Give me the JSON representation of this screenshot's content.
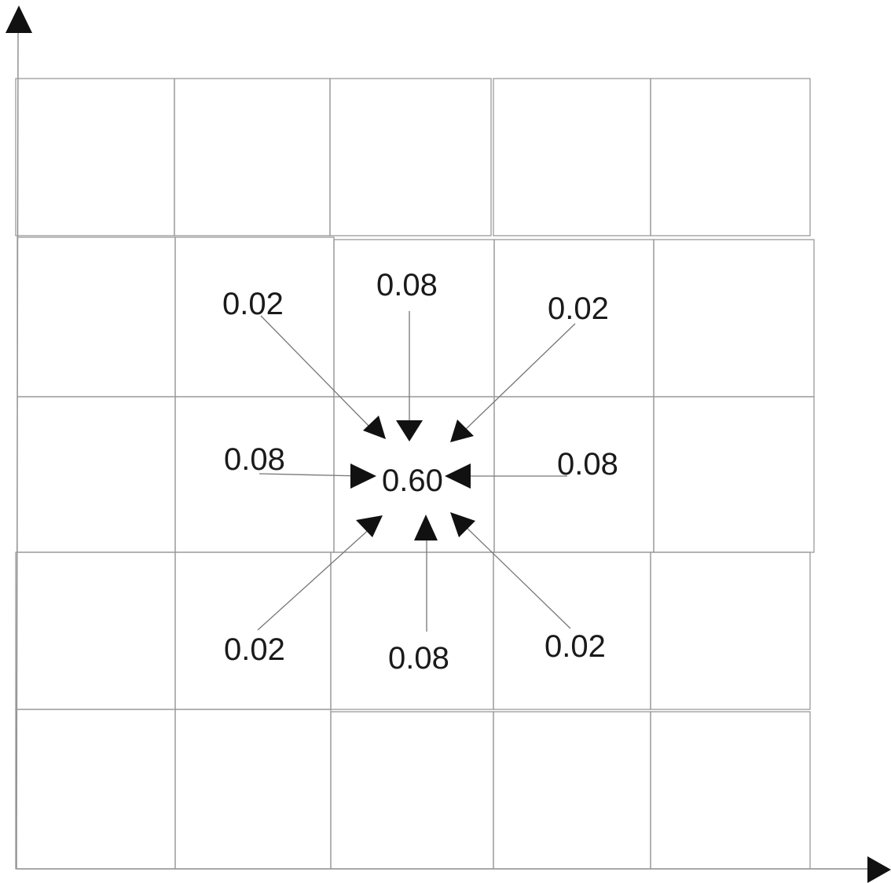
{
  "grid": {
    "rows": 5,
    "cols": 5
  },
  "center": {
    "label": "0.60"
  },
  "neighbors": [
    {
      "id": "top-left",
      "label": "0.02"
    },
    {
      "id": "top",
      "label": "0.08"
    },
    {
      "id": "top-right",
      "label": "0.02"
    },
    {
      "id": "left",
      "label": "0.08"
    },
    {
      "id": "right",
      "label": "0.08"
    },
    {
      "id": "bottom-left",
      "label": "0.02"
    },
    {
      "id": "bottom",
      "label": "0.08"
    },
    {
      "id": "bottom-right",
      "label": "0.02"
    }
  ]
}
